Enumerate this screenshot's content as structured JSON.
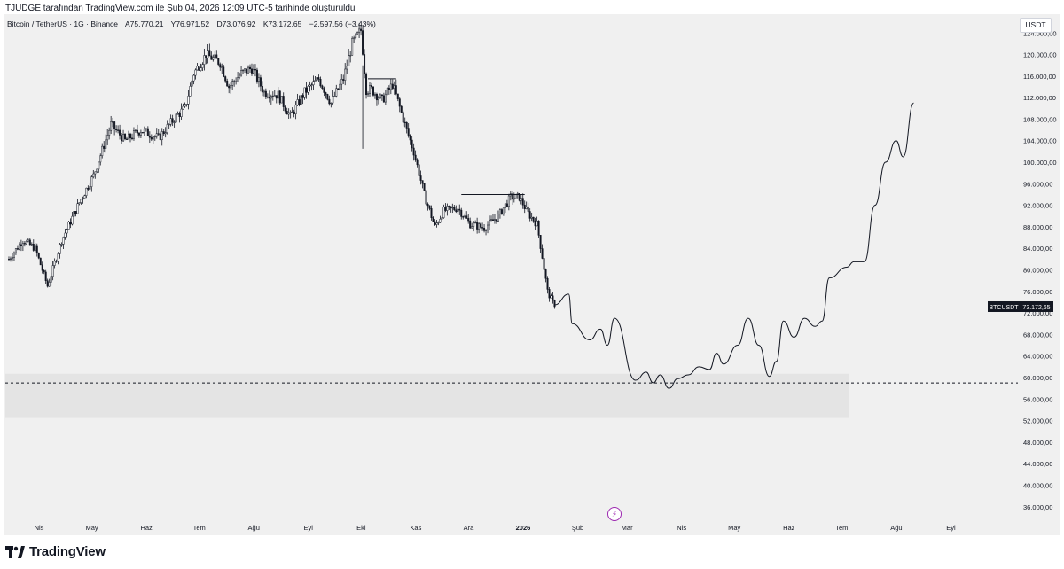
{
  "caption": "TJUDGE tarafından TradingView.com ile Şub 04, 2026 12:09 UTC-5 tarihinde oluşturuldu",
  "symbol": {
    "name": "Bitcoin / TetherUS · 1G · Binance",
    "open": "A75.770,21",
    "high": "Y76.971,52",
    "low": "D73.076,92",
    "close": "K73.172,65",
    "change": "−2.597,56 (−3,43%)"
  },
  "currency_badge": "USDT",
  "brand": "TradingView",
  "icons": {
    "logo": "tradingview-logo-icon",
    "event": "lightning-icon"
  },
  "colors": {
    "candle": "#131722",
    "background": "#f0f0f0",
    "zone": "#e4e4e4",
    "price_tag": "#131722"
  },
  "chart_data": {
    "type": "candlestick",
    "title": "",
    "xlabel": "",
    "ylabel": "",
    "ylim": [
      33000,
      127500
    ],
    "y_ticks": [
      124000,
      120000,
      116000,
      112000,
      108000,
      104000,
      100000,
      96000,
      92000,
      88000,
      84000,
      80000,
      76000,
      72000,
      68000,
      64000,
      60000,
      56000,
      52000,
      48000,
      44000,
      40000,
      36000
    ],
    "y_tick_labels": [
      "124.000,00",
      "120.000,00",
      "116.000,00",
      "112.000,00",
      "108.000,00",
      "104.000,00",
      "100.000,00",
      "96.000,00",
      "92.000,00",
      "88.000,00",
      "84.000,00",
      "80.000,00",
      "76.000,00",
      "72.000,00",
      "68.000,00",
      "64.000,00",
      "60.000,00",
      "56.000,00",
      "52.000,00",
      "48.000,00",
      "44.000,00",
      "40.000,00",
      "36.000,00"
    ],
    "x_months": [
      "Nis",
      "May",
      "Haz",
      "Tem",
      "Ağu",
      "Eyl",
      "Eki",
      "Kas",
      "Ara",
      "2026",
      "Şub",
      "Mar",
      "Nis",
      "May",
      "Haz",
      "Tem",
      "Ağu",
      "Eyl"
    ],
    "x_month_day_index": [
      0,
      30,
      61,
      91,
      122,
      153,
      183,
      214,
      244,
      275,
      306,
      334,
      365,
      395,
      426,
      456,
      487,
      518
    ],
    "price_path_anchors": [
      [
        0,
        82000
      ],
      [
        8,
        85500
      ],
      [
        15,
        84000
      ],
      [
        22,
        77000
      ],
      [
        30,
        85500
      ],
      [
        40,
        92500
      ],
      [
        48,
        97500
      ],
      [
        58,
        107000
      ],
      [
        66,
        104000
      ],
      [
        75,
        106000
      ],
      [
        85,
        104500
      ],
      [
        95,
        108500
      ],
      [
        100,
        110000
      ],
      [
        105,
        116500
      ],
      [
        112,
        120000
      ],
      [
        120,
        118500
      ],
      [
        125,
        114000
      ],
      [
        132,
        116500
      ],
      [
        138,
        117500
      ],
      [
        145,
        113000
      ],
      [
        153,
        112500
      ],
      [
        160,
        108500
      ],
      [
        168,
        113000
      ],
      [
        176,
        115500
      ],
      [
        183,
        111000
      ],
      [
        190,
        115500
      ],
      [
        195,
        122000
      ],
      [
        200,
        124500
      ],
      [
        203,
        113500
      ],
      [
        206,
        113500
      ],
      [
        212,
        111500
      ],
      [
        218,
        114500
      ],
      [
        225,
        107000
      ],
      [
        230,
        102000
      ],
      [
        236,
        94000
      ],
      [
        242,
        88000
      ],
      [
        247,
        91000
      ],
      [
        255,
        91500
      ],
      [
        262,
        88500
      ],
      [
        270,
        87800
      ],
      [
        278,
        90000
      ],
      [
        285,
        93500
      ],
      [
        290,
        93500
      ],
      [
        295,
        90500
      ],
      [
        300,
        88500
      ],
      [
        303,
        82500
      ],
      [
        306,
        76000
      ],
      [
        310,
        73172
      ]
    ],
    "projection_path": [
      [
        310,
        73500
      ],
      [
        318,
        75500
      ],
      [
        320,
        70000
      ],
      [
        330,
        67000
      ],
      [
        336,
        69000
      ],
      [
        340,
        66000
      ],
      [
        344,
        71000
      ],
      [
        356,
        59500
      ],
      [
        362,
        61000
      ],
      [
        366,
        59000
      ],
      [
        370,
        60500
      ],
      [
        375,
        58000
      ],
      [
        380,
        59800
      ],
      [
        386,
        60500
      ],
      [
        392,
        62000
      ],
      [
        398,
        61500
      ],
      [
        402,
        64500
      ],
      [
        406,
        62500
      ],
      [
        414,
        66000
      ],
      [
        420,
        71000
      ],
      [
        426,
        66000
      ],
      [
        432,
        60200
      ],
      [
        436,
        63000
      ],
      [
        440,
        70500
      ],
      [
        446,
        67500
      ],
      [
        452,
        71000
      ],
      [
        458,
        69500
      ],
      [
        462,
        70500
      ],
      [
        466,
        78500
      ],
      [
        476,
        80500
      ],
      [
        480,
        81500
      ],
      [
        486,
        81500
      ],
      [
        492,
        92000
      ],
      [
        498,
        100000
      ],
      [
        504,
        104000
      ],
      [
        508,
        101000
      ],
      [
        514,
        111000
      ]
    ],
    "horizontal_ray_1": {
      "from_day": 204,
      "to_day": 220,
      "value": 115500
    },
    "horizontal_ray_2": {
      "from_day": 257,
      "to_day": 293,
      "value": 94000
    },
    "dashed_level": 59000,
    "support_zone": [
      52500,
      60700
    ],
    "support_zone_end_day": 477,
    "last_price_label": "BTCUSDT",
    "last_price_value": 73172.65,
    "last_price_text": "73.172,65"
  }
}
